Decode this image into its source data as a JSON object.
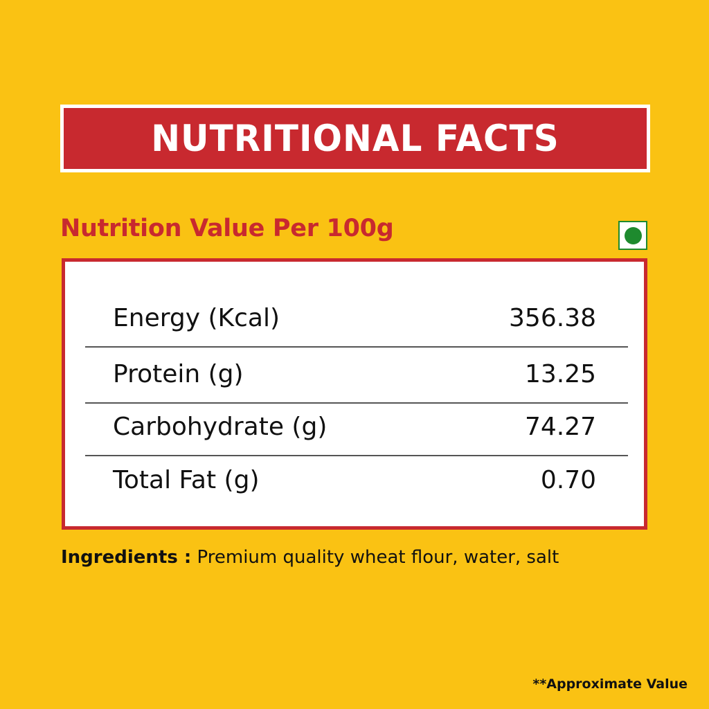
{
  "title": "NUTRITIONAL FACTS",
  "subtitle": "Nutrition Value Per 100g",
  "veg_mark": {
    "icon": "veg-symbol-icon",
    "color": "#1E8A2E"
  },
  "nutrition_table": {
    "rows": [
      {
        "label": "Energy (Kcal)",
        "value": "356.38"
      },
      {
        "label": "Protein (g)",
        "value": "13.25"
      },
      {
        "label": "Carbohydrate (g)",
        "value": "74.27"
      },
      {
        "label": "Total Fat (g)",
        "value": "0.70"
      }
    ]
  },
  "ingredients": {
    "label": "Ingredients :",
    "text": "Premium quality wheat flour, water, salt"
  },
  "note": "**Approximate Value",
  "colors": {
    "background": "#FAC213",
    "accent_red": "#C8292F",
    "white": "#FFFFFF",
    "text": "#111111"
  }
}
